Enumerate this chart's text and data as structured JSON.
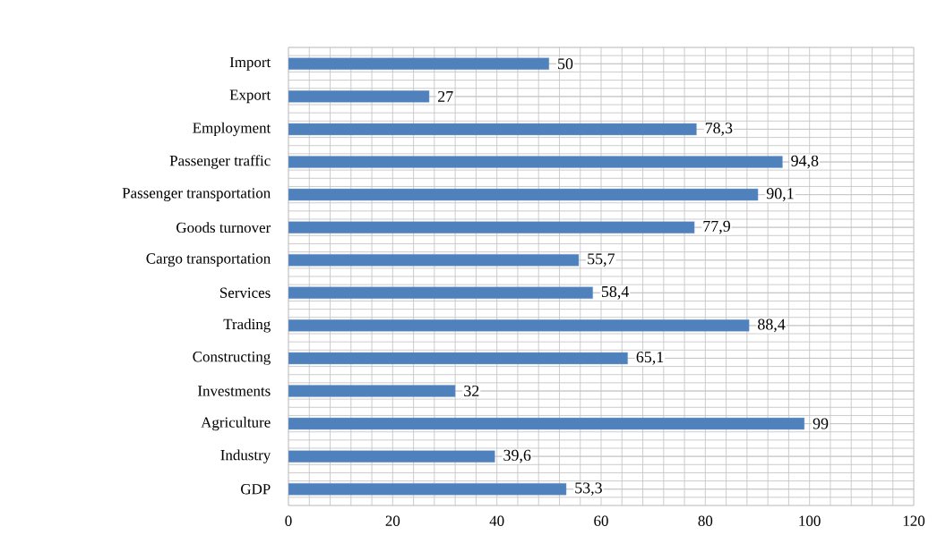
{
  "chart_data": {
    "type": "bar",
    "orientation": "horizontal",
    "categories": [
      "Import",
      "Export",
      "Employment",
      "Passenger traffic",
      "Passenger transportation",
      "Goods turnover",
      "Cargo transportation",
      "Services",
      "Trading",
      "Constructing",
      "Investments",
      "Agriculture",
      "Industry",
      "GDP"
    ],
    "values": [
      50,
      27,
      78.3,
      94.8,
      90.1,
      77.9,
      55.7,
      58.4,
      88.4,
      65.1,
      32,
      99,
      39.6,
      53.3
    ],
    "value_labels": [
      "50",
      "27",
      "78,3",
      "94,8",
      "90,1",
      "77,9",
      "55,7",
      "58,4",
      "88,4",
      "65,1",
      "32",
      "99",
      "39,6",
      "53,3"
    ],
    "color": "#4f81bd",
    "xlim": [
      0,
      120
    ],
    "xticks": [
      0,
      20,
      40,
      60,
      80,
      100,
      120
    ],
    "grid": true
  }
}
